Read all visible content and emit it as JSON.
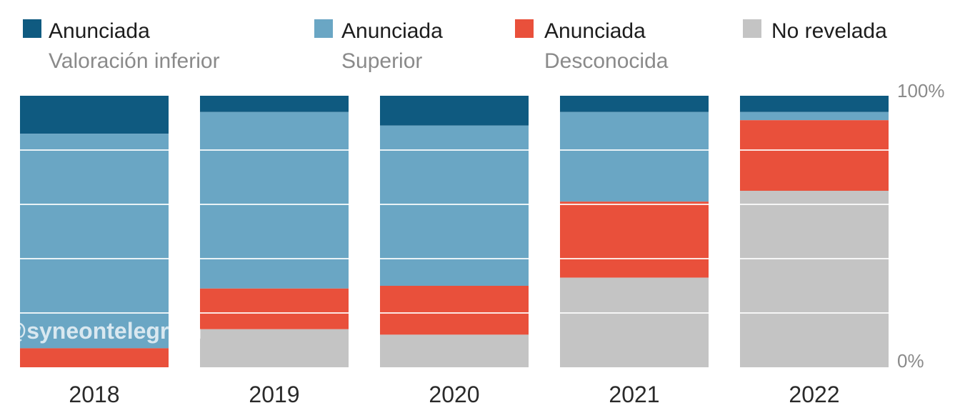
{
  "chart_data": {
    "type": "bar",
    "stacked": true,
    "percent": true,
    "categories": [
      "2018",
      "2019",
      "2020",
      "2021",
      "2022"
    ],
    "series": [
      {
        "name": "Anunciada",
        "subname": "Valoración inferior",
        "color": "#0f5a80",
        "values": [
          14,
          6,
          11,
          6,
          6
        ]
      },
      {
        "name": "Anunciada",
        "subname": "Superior",
        "color": "#6aa6c4",
        "values": [
          79,
          65,
          59,
          33,
          3
        ]
      },
      {
        "name": "Anunciada",
        "subname": "Desconocida",
        "color": "#e9503b",
        "values": [
          7,
          15,
          18,
          28,
          26
        ]
      },
      {
        "name": "No revelada",
        "subname": "",
        "color": "#c4c4c4",
        "values": [
          0,
          14,
          12,
          33,
          65
        ]
      }
    ],
    "ylim": [
      0,
      100
    ],
    "y_axis_labels": {
      "top": "100%",
      "bottom": "0%"
    },
    "grid": true,
    "legend_position": "top"
  },
  "watermark": "@syneontelegram"
}
